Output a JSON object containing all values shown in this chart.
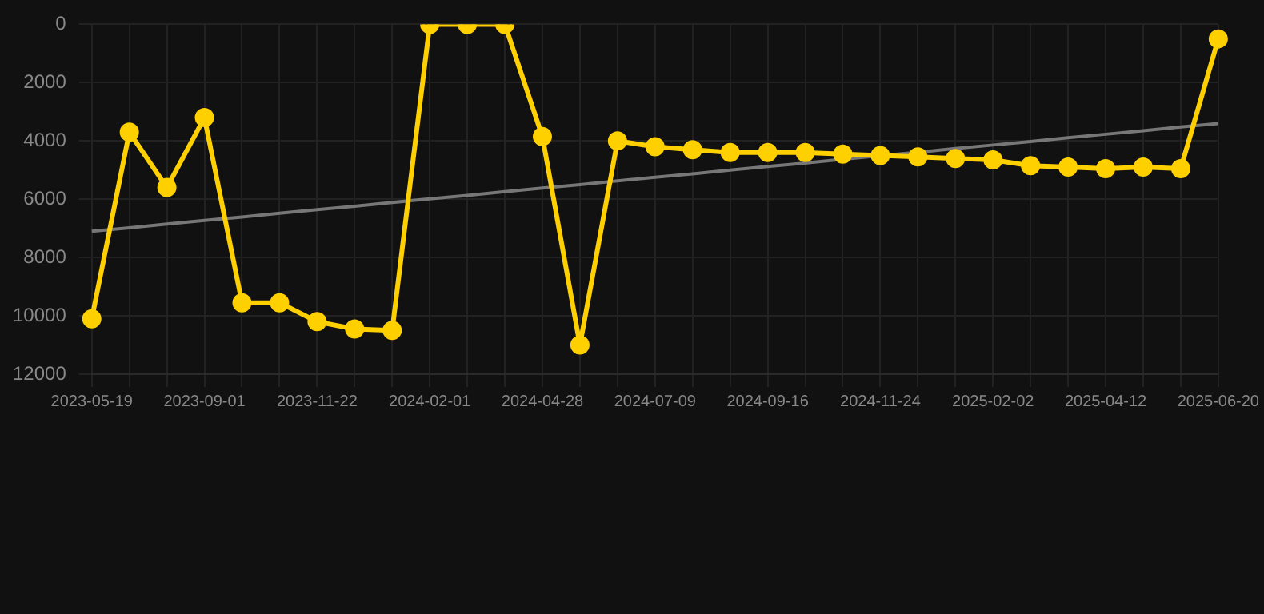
{
  "chart_data": {
    "type": "line",
    "categories": [
      "2023-05-19",
      null,
      null,
      "2023-09-01",
      null,
      null,
      "2023-11-22",
      null,
      null,
      "2024-02-01",
      null,
      null,
      "2024-04-28",
      null,
      null,
      "2024-07-09",
      null,
      null,
      "2024-09-16",
      null,
      null,
      "2024-11-24",
      null,
      null,
      "2025-02-02",
      null,
      null,
      "2025-04-12",
      null,
      null,
      "2025-06-20"
    ],
    "series": [
      {
        "color": "#ffd000",
        "values": [
          10100,
          3700,
          5600,
          3200,
          9550,
          9550,
          10200,
          10450,
          10500,
          0,
          0,
          0,
          3850,
          11000,
          4000,
          4200,
          4300,
          4400,
          4400,
          4400,
          4450,
          4500,
          4550,
          4600,
          4650,
          4850,
          4900,
          4950,
          4900,
          4950,
          500
        ]
      },
      {
        "type": "line",
        "color": "#777777",
        "marker": "none",
        "values": [
          7100,
          6980,
          6850,
          6730,
          6610,
          6480,
          6360,
          6240,
          6110,
          5990,
          5870,
          5740,
          5620,
          5500,
          5370,
          5250,
          5130,
          5000,
          4880,
          4760,
          4630,
          4510,
          4390,
          4260,
          4140,
          4020,
          3890,
          3770,
          3650,
          3520,
          3400
        ]
      }
    ],
    "ylim": [
      12000,
      0
    ],
    "yticks": [
      0,
      2000,
      4000,
      6000,
      8000,
      10000,
      12000
    ],
    "grid": true,
    "legend": false,
    "marker": "circle",
    "line_style": "solid"
  }
}
